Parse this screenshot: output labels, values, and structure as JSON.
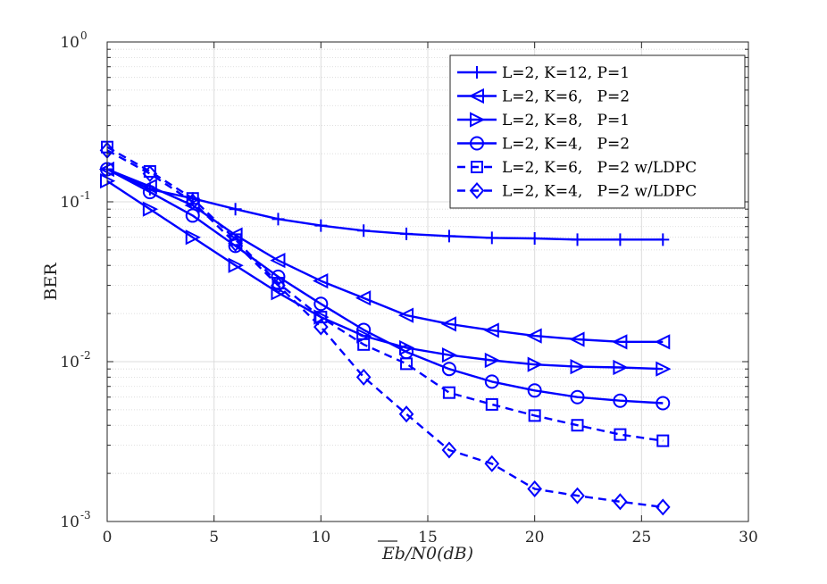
{
  "chart_data": {
    "type": "line",
    "title": "",
    "xlabel": "Eb/N0(dB)",
    "ylabel": "BER",
    "xlim": [
      0,
      30
    ],
    "ylim": [
      0.001,
      1
    ],
    "yscale": "log",
    "grid": true,
    "legend_position": "top-right",
    "x_ticks": [
      0,
      5,
      10,
      15,
      20,
      25,
      30
    ],
    "x_tick_labels": [
      "0",
      "5",
      "10",
      "15",
      "20",
      "25",
      "30"
    ],
    "y_ticks": [
      0.001,
      0.01,
      0.1,
      1
    ],
    "y_tick_bases": [
      "10",
      "10",
      "10",
      "10"
    ],
    "y_tick_exponents": [
      "-3",
      "-2",
      "-1",
      "0"
    ],
    "line_color": "#0000ff",
    "series": [
      {
        "name": "L=2, K=12, P=1",
        "marker": "plus",
        "dash": "solid",
        "x": [
          0,
          2,
          4,
          6,
          8,
          10,
          12,
          14,
          16,
          18,
          20,
          22,
          24,
          26
        ],
        "values": [
          0.16,
          0.12,
          0.105,
          0.09,
          0.078,
          0.071,
          0.066,
          0.063,
          0.061,
          0.0595,
          0.059,
          0.058,
          0.058,
          0.058
        ]
      },
      {
        "name": "L=2, K=6,   P=2",
        "marker": "triangle-left",
        "dash": "solid",
        "x": [
          0,
          2,
          4,
          6,
          8,
          10,
          12,
          14,
          16,
          18,
          20,
          22,
          24,
          26
        ],
        "values": [
          0.16,
          0.125,
          0.095,
          0.062,
          0.043,
          0.032,
          0.025,
          0.0195,
          0.0172,
          0.0157,
          0.0145,
          0.0138,
          0.0133,
          0.0133
        ]
      },
      {
        "name": "L=2, K=8,   P=1",
        "marker": "triangle-right",
        "dash": "solid",
        "x": [
          0,
          2,
          4,
          6,
          8,
          10,
          12,
          14,
          16,
          18,
          20,
          22,
          24,
          26
        ],
        "values": [
          0.135,
          0.09,
          0.06,
          0.04,
          0.027,
          0.019,
          0.0145,
          0.0122,
          0.011,
          0.0102,
          0.0096,
          0.0093,
          0.0092,
          0.009
        ]
      },
      {
        "name": "L=2, K=4,   P=2",
        "marker": "circle",
        "dash": "solid",
        "x": [
          0,
          2,
          4,
          6,
          8,
          10,
          12,
          14,
          16,
          18,
          20,
          22,
          24,
          26
        ],
        "values": [
          0.16,
          0.115,
          0.082,
          0.053,
          0.034,
          0.023,
          0.0158,
          0.0115,
          0.009,
          0.0075,
          0.0066,
          0.006,
          0.0057,
          0.0055
        ]
      },
      {
        "name": "L=2, K=6,   P=2 w/LDPC",
        "marker": "square",
        "dash": "dashed",
        "x": [
          0,
          2,
          4,
          6,
          8,
          10,
          12,
          14,
          16,
          18,
          20,
          22,
          24,
          26
        ],
        "values": [
          0.22,
          0.155,
          0.105,
          0.058,
          0.031,
          0.019,
          0.0128,
          0.0097,
          0.0064,
          0.0054,
          0.0046,
          0.004,
          0.0035,
          0.0032
        ]
      },
      {
        "name": "L=2, K=4,   P=2 w/LDPC",
        "marker": "diamond",
        "dash": "dashed",
        "x": [
          0,
          2,
          4,
          6,
          8,
          10,
          12,
          14,
          16,
          18,
          20,
          22,
          24,
          26
        ],
        "values": [
          0.21,
          0.15,
          0.1,
          0.055,
          0.03,
          0.0165,
          0.008,
          0.0047,
          0.0028,
          0.0023,
          0.0016,
          0.00145,
          0.00133,
          0.00123
        ]
      }
    ]
  }
}
